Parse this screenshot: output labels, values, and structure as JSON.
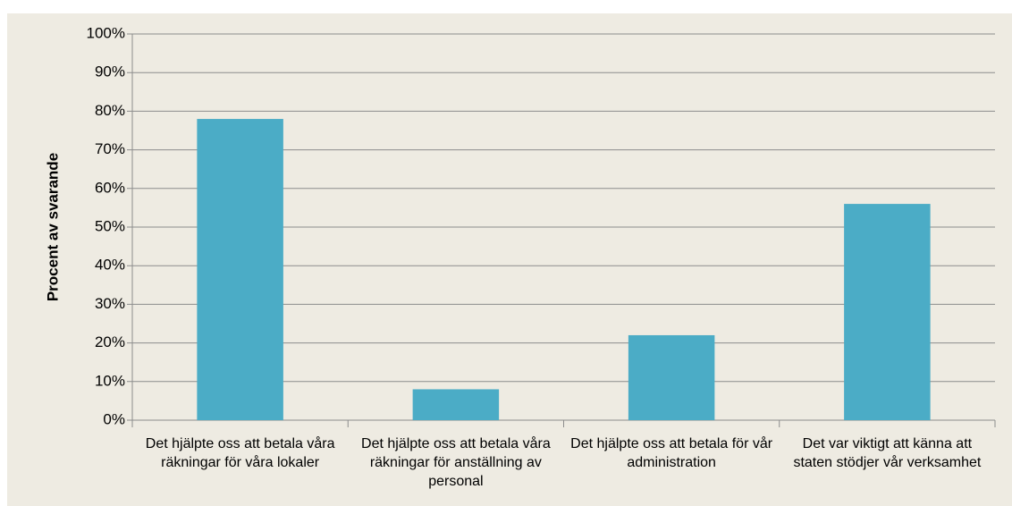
{
  "chart_data": {
    "type": "bar",
    "y_label": "Procent av svarande",
    "categories": [
      "Det hjälpte oss att betala våra räkningar för våra lokaler",
      "Det hjälpte oss att betala våra räkningar för anställning av personal",
      "Det hjälpte oss att betala för vår administration",
      "Det var viktigt att känna att staten stödjer vår verksamhet"
    ],
    "values": [
      78,
      8,
      22,
      56
    ],
    "color": "#4bacc6",
    "ylim": [
      0,
      100
    ],
    "yticks": [
      {
        "value": 0,
        "label": "0%"
      },
      {
        "value": 10,
        "label": "10%"
      },
      {
        "value": 20,
        "label": "20%"
      },
      {
        "value": 30,
        "label": "30%"
      },
      {
        "value": 40,
        "label": "40%"
      },
      {
        "value": 50,
        "label": "50%"
      },
      {
        "value": 60,
        "label": "60%"
      },
      {
        "value": 70,
        "label": "70%"
      },
      {
        "value": 80,
        "label": "80%"
      },
      {
        "value": 90,
        "label": "90%"
      },
      {
        "value": 100,
        "label": "100%"
      }
    ],
    "grid": true
  }
}
